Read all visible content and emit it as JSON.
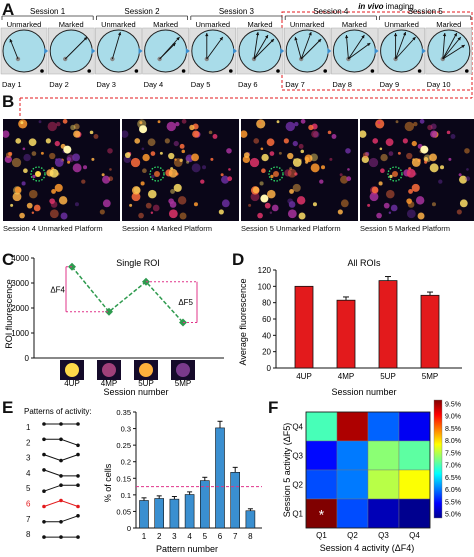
{
  "panelA": {
    "label": "A",
    "imaging_label_pre": "in vivo",
    "imaging_label_post": " imaging",
    "sessions": [
      "Session 1",
      "Session 2",
      "Session 3",
      "Session 4",
      "Session 5"
    ],
    "circle_labels": [
      "Unmarked",
      "Marked",
      "Unmarked",
      "Marked",
      "Unmarked",
      "Marked",
      "Unmarked",
      "Marked",
      "Unmarked",
      "Marked"
    ],
    "days": [
      "Day 1",
      "Day 2",
      "Day 3",
      "Day 4",
      "Day 5",
      "Day 6",
      "Day 7",
      "Day 8",
      "Day 9",
      "Day 10"
    ]
  },
  "panelB": {
    "label": "B",
    "captions": [
      "Session 4 Unmarked Platform",
      "Session 4 Marked Platform",
      "Session 5 Unmarked Platform",
      "Session 5 Marked Platform"
    ]
  },
  "chart_data": [
    {
      "panel": "C",
      "type": "line",
      "title": "Single ROI",
      "xlabel": "Session number",
      "ylabel": "ROI fluorescence",
      "categories": [
        "4UP",
        "4MP",
        "5UP",
        "5MP"
      ],
      "values": [
        3650,
        1850,
        3050,
        1420
      ],
      "ylim": [
        0,
        4000
      ],
      "yticks": [
        "0",
        "1000",
        "2000",
        "3000",
        "4000"
      ],
      "annotations": [
        "ΔF4",
        "ΔF5"
      ],
      "color": "#2e9a4e"
    },
    {
      "panel": "D",
      "type": "bar",
      "title": "All ROIs",
      "xlabel": "Session number",
      "ylabel": "Average fluorescence",
      "categories": [
        "4UP",
        "4MP",
        "5UP",
        "5MP"
      ],
      "values": [
        100,
        83,
        107,
        89
      ],
      "errors": [
        0,
        4,
        5,
        4
      ],
      "ylim": [
        0,
        120
      ],
      "yticks": [
        "0",
        "20",
        "40",
        "60",
        "80",
        "100",
        "120"
      ],
      "color": "#e31a1c"
    },
    {
      "panel": "E",
      "type": "bar",
      "xlabel": "Pattern number",
      "ylabel": "% of cells",
      "categories": [
        "1",
        "2",
        "3",
        "4",
        "5",
        "6",
        "7",
        "8"
      ],
      "values": [
        0.083,
        0.089,
        0.087,
        0.101,
        0.143,
        0.302,
        0.168,
        0.052
      ],
      "errors": [
        0.008,
        0.008,
        0.008,
        0.008,
        0.01,
        0.02,
        0.015,
        0.006
      ],
      "ylim": [
        0,
        0.35
      ],
      "yticks": [
        "0",
        "0.05",
        "0.1",
        "0.15",
        "0.2",
        "0.25",
        "0.3",
        "0.35"
      ],
      "reference_line": 0.125,
      "color": "#3a8fd0"
    },
    {
      "panel": "F",
      "type": "heatmap",
      "xlabel": "Session 4 activity (ΔF4)",
      "ylabel": "Session 5 activity (ΔF5)",
      "x": [
        "Q1",
        "Q2",
        "Q3",
        "Q4"
      ],
      "y": [
        "Q4",
        "Q3",
        "Q2",
        "Q1"
      ],
      "values": [
        [
          0.07,
          0.093,
          0.06,
          0.055
        ],
        [
          0.056,
          0.061,
          0.073,
          0.071
        ],
        [
          0.059,
          0.061,
          0.075,
          0.078
        ],
        [
          0.095,
          0.059,
          0.052,
          0.05
        ]
      ],
      "marker": {
        "cell": "Q1,Q1",
        "symbol": "*"
      },
      "colorbar_ticks": [
        "9.5%",
        "9.0%",
        "8.5%",
        "8.0%",
        "7.5%",
        "7.0%",
        "6.5%",
        "6.0%",
        "5.5%",
        "5.0%"
      ],
      "zlim": [
        0.05,
        0.095
      ]
    }
  ],
  "panelE_patterns": {
    "title": "Patterns of activity:",
    "numbers": [
      "1",
      "2",
      "3",
      "4",
      "5",
      "6",
      "7",
      "8"
    ],
    "highlight_index": 5,
    "highlight_color": "#e31a1c",
    "shapes": [
      [
        1,
        1,
        1
      ],
      [
        1,
        1,
        0
      ],
      [
        1,
        0,
        1
      ],
      [
        1,
        0,
        0
      ],
      [
        0,
        1,
        1
      ],
      [
        0,
        1,
        0
      ],
      [
        0,
        0,
        1
      ],
      [
        0,
        0,
        0
      ]
    ]
  },
  "panel_labels": {
    "C": "C",
    "D": "D",
    "E": "E",
    "F": "F"
  }
}
